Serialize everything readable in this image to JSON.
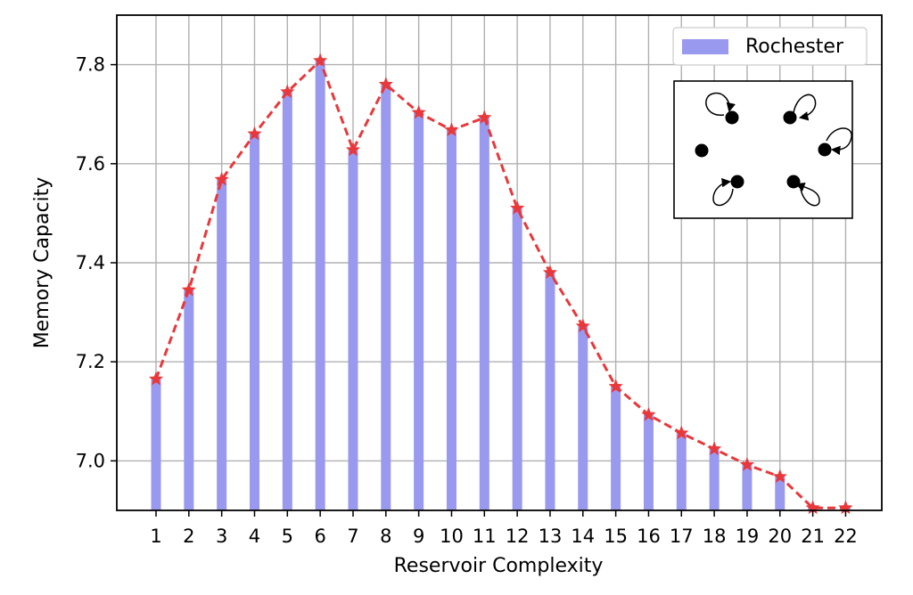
{
  "chart_data": {
    "type": "bar",
    "categories": [
      "1",
      "2",
      "3",
      "4",
      "5",
      "6",
      "7",
      "8",
      "9",
      "10",
      "11",
      "12",
      "13",
      "14",
      "15",
      "16",
      "17",
      "18",
      "19",
      "20",
      "21",
      "22"
    ],
    "series": [
      {
        "name": "Rochester",
        "values": [
          7.165,
          7.345,
          7.568,
          7.66,
          7.745,
          7.808,
          7.628,
          7.76,
          7.703,
          7.668,
          7.693,
          7.51,
          7.38,
          7.272,
          7.15,
          7.093,
          7.056,
          7.024,
          6.992,
          6.968,
          6.905,
          6.905
        ],
        "color": "#9999f0"
      }
    ],
    "line_overlay": {
      "style": "dashed",
      "marker": "star",
      "color": "#e8383a"
    },
    "xlabel": "Reservoir Complexity",
    "ylabel": "Memory Capacity",
    "ylim": [
      6.9,
      7.9
    ],
    "yticks": [
      "7.0",
      "7.2",
      "7.4",
      "7.6",
      "7.8"
    ],
    "grid": true,
    "legend": {
      "placement": "top-right"
    },
    "inset": "network diagram with self-loop nodes"
  }
}
